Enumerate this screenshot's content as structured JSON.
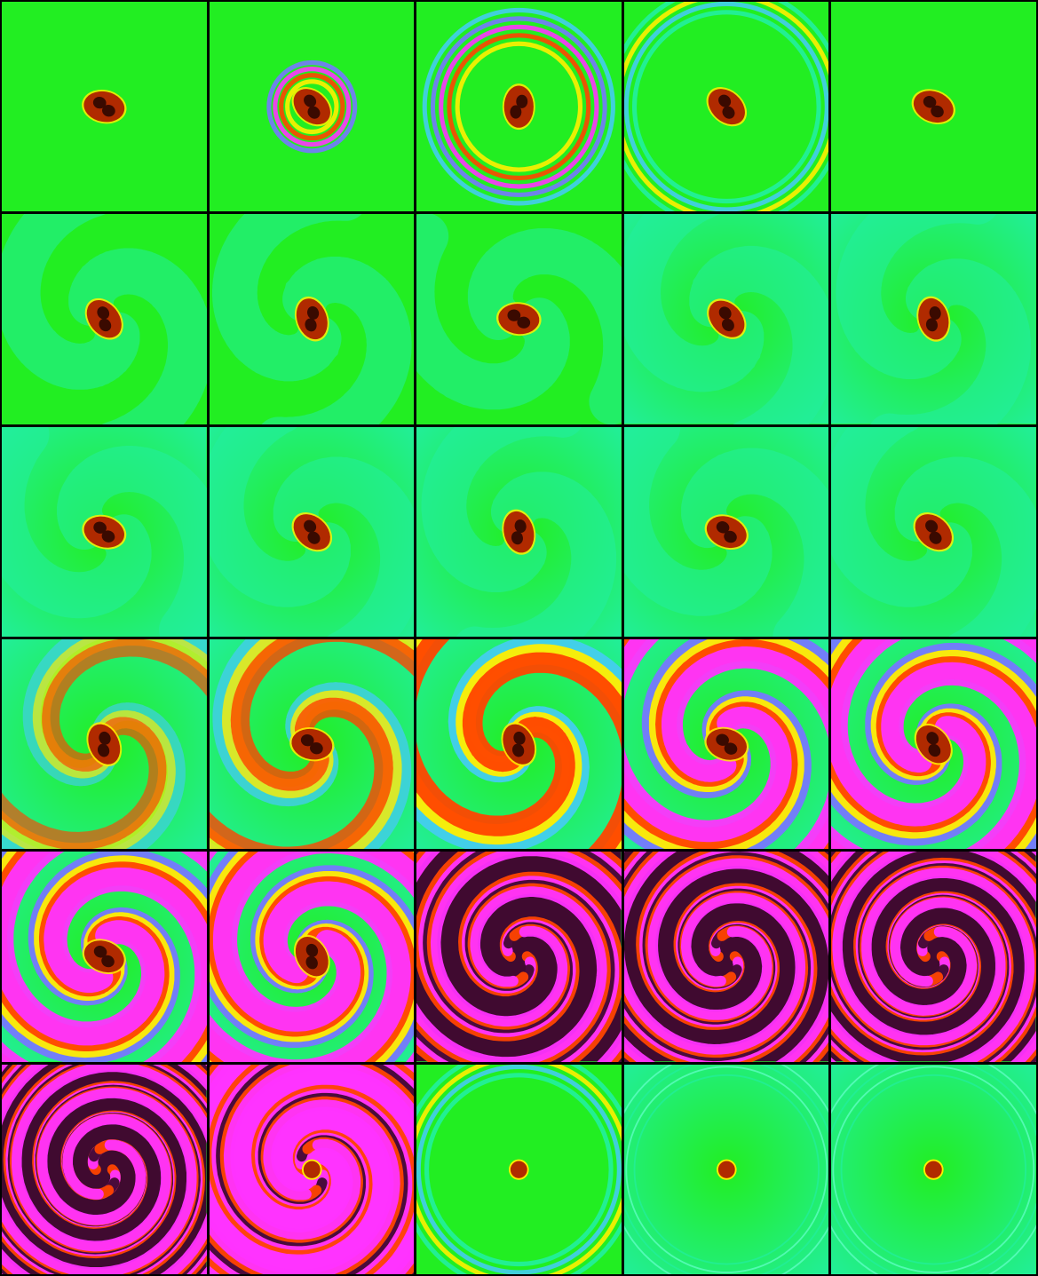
{
  "figure": {
    "rows": 6,
    "cols": 5,
    "panel_count": 30
  },
  "palette": {
    "background_green": "#22ee22",
    "background_teal": "#22eea0",
    "blob_red": "#b02a00",
    "blob_dark": "#3a0a00",
    "band_yellow": "#ffee00",
    "band_red": "#ff4400",
    "band_magenta": "#ff33ff",
    "band_blue": "#7777ff",
    "band_cyan": "#44ccee",
    "band_dark": "#400a30"
  },
  "panels": [
    {
      "kind": "blob",
      "angle": 10,
      "swirl": 0,
      "rings": 0,
      "teal": 0
    },
    {
      "kind": "burst",
      "angle": 40,
      "swirl": 0,
      "rings": 1,
      "teal": 0
    },
    {
      "kind": "rings",
      "angle": 90,
      "swirl": 0,
      "rings": 2,
      "teal": 0.1
    },
    {
      "kind": "faint-rings",
      "angle": 40,
      "swirl": 0,
      "rings": 3,
      "teal": 0.2
    },
    {
      "kind": "blob",
      "angle": 20,
      "swirl": 0,
      "rings": 0,
      "teal": 0.1
    },
    {
      "kind": "blob",
      "angle": 50,
      "swirl": 0,
      "rings": 0,
      "teal": 0.3
    },
    {
      "kind": "blob",
      "angle": 70,
      "swirl": 0,
      "rings": 0,
      "teal": 0.35
    },
    {
      "kind": "blob",
      "angle": 5,
      "swirl": 0,
      "rings": 0,
      "teal": 0.4
    },
    {
      "kind": "blob",
      "angle": 45,
      "swirl": 0,
      "rings": 0,
      "teal": 0.45
    },
    {
      "kind": "blob",
      "angle": 75,
      "swirl": 0,
      "rings": 0,
      "teal": 0.5
    },
    {
      "kind": "blob",
      "angle": 15,
      "swirl": 0,
      "rings": 0,
      "teal": 0.55
    },
    {
      "kind": "blob",
      "angle": 40,
      "swirl": 0,
      "rings": 0,
      "teal": 0.55
    },
    {
      "kind": "blob",
      "angle": 75,
      "swirl": 0,
      "rings": 0,
      "teal": 0.6
    },
    {
      "kind": "blob",
      "angle": 20,
      "swirl": 0,
      "rings": 0,
      "teal": 0.6
    },
    {
      "kind": "blob",
      "angle": 40,
      "swirl": 0,
      "rings": 0,
      "teal": 0.6
    },
    {
      "kind": "swirl",
      "angle": 65,
      "swirl": 0.15,
      "rings": 0,
      "teal": 0.7
    },
    {
      "kind": "swirl",
      "angle": 10,
      "swirl": 0.3,
      "rings": 0,
      "teal": 0.7
    },
    {
      "kind": "swirl",
      "angle": 65,
      "swirl": 0.45,
      "rings": 0,
      "teal": 0.7
    },
    {
      "kind": "swirl",
      "angle": 15,
      "swirl": 0.6,
      "rings": 0,
      "teal": 0.7
    },
    {
      "kind": "swirl",
      "angle": 50,
      "swirl": 0.75,
      "rings": 0,
      "teal": 0.7
    },
    {
      "kind": "swirl",
      "angle": 20,
      "swirl": 0.85,
      "rings": 0,
      "teal": 0.7
    },
    {
      "kind": "swirl",
      "angle": 60,
      "swirl": 0.95,
      "rings": 0,
      "teal": 0.7
    },
    {
      "kind": "tight-swirl",
      "angle": 0,
      "swirl": 1.0,
      "rings": 0,
      "teal": 0.7
    },
    {
      "kind": "tight-swirl",
      "angle": 0,
      "swirl": 1.1,
      "rings": 0,
      "teal": 0.7
    },
    {
      "kind": "tight-swirl",
      "angle": 0,
      "swirl": 1.2,
      "rings": 0,
      "teal": 0.7
    },
    {
      "kind": "tight-swirl",
      "angle": 0,
      "swirl": 1.3,
      "rings": 0,
      "teal": 0.7
    },
    {
      "kind": "ring-fade",
      "angle": 0,
      "swirl": 1.0,
      "rings": 0,
      "teal": 0.7
    },
    {
      "kind": "ring-fade-2",
      "angle": 0,
      "swirl": 0,
      "rings": 3,
      "teal": 0.3
    },
    {
      "kind": "dot-faint",
      "angle": 0,
      "swirl": 0,
      "rings": 3,
      "teal": 0.5
    },
    {
      "kind": "dot-faint",
      "angle": 0,
      "swirl": 0,
      "rings": 3,
      "teal": 0.6
    }
  ]
}
